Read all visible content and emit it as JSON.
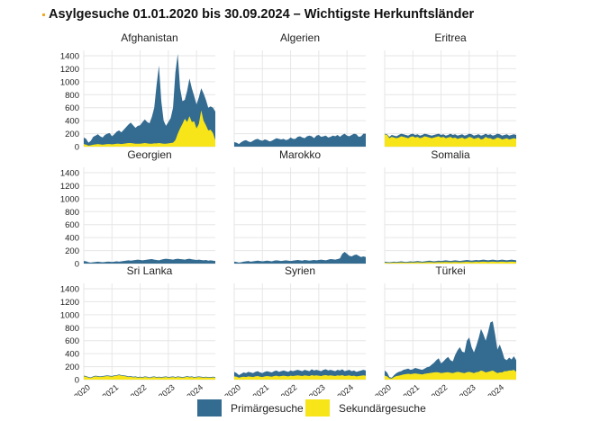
{
  "title": "Asylgesuche 01.01.2020 bis 30.09.2024 – Wichtigste Herkunftsländer",
  "chart_data": {
    "type": "area",
    "stacked": true,
    "x_unit": "month",
    "x_start": "2020-01",
    "x_end": "2024-09",
    "x_tick_labels": [
      "2020",
      "2021",
      "2022",
      "2023",
      "2024"
    ],
    "y_ticks": [
      0,
      200,
      400,
      600,
      800,
      1000,
      1200,
      1400
    ],
    "ylim": [
      0,
      1500
    ],
    "grid": true,
    "legend_position": "bottom",
    "series_meta": [
      {
        "name": "Primärgesuche",
        "color": "#336b91"
      },
      {
        "name": "Sekundärgesuche",
        "color": "#f7e51a"
      }
    ],
    "panels": [
      {
        "name": "Afghanistan",
        "total": [
          140,
          120,
          60,
          90,
          150,
          170,
          190,
          160,
          140,
          180,
          200,
          210,
          160,
          190,
          230,
          250,
          220,
          260,
          300,
          340,
          370,
          330,
          290,
          320,
          330,
          380,
          420,
          380,
          360,
          460,
          600,
          950,
          1250,
          700,
          400,
          320,
          380,
          440,
          600,
          1140,
          1430,
          900,
          700,
          720,
          860,
          1050,
          900,
          780,
          650,
          760,
          900,
          820,
          720,
          600,
          620,
          600,
          540
        ],
        "secondary": [
          40,
          30,
          15,
          20,
          30,
          35,
          40,
          35,
          30,
          35,
          40,
          40,
          35,
          40,
          45,
          45,
          40,
          45,
          50,
          55,
          55,
          50,
          45,
          45,
          45,
          50,
          55,
          50,
          45,
          45,
          50,
          50,
          55,
          50,
          45,
          45,
          50,
          55,
          60,
          100,
          200,
          280,
          350,
          430,
          380,
          470,
          380,
          390,
          280,
          350,
          560,
          400,
          330,
          250,
          260,
          210,
          100
        ]
      },
      {
        "name": "Algerien",
        "total": [
          70,
          60,
          40,
          70,
          90,
          100,
          80,
          70,
          90,
          110,
          120,
          100,
          90,
          110,
          100,
          80,
          90,
          110,
          130,
          120,
          110,
          120,
          100,
          110,
          140,
          120,
          120,
          150,
          160,
          140,
          130,
          160,
          170,
          160,
          130,
          170,
          180,
          150,
          160,
          170,
          140,
          150,
          170,
          160,
          180,
          150,
          180,
          200,
          170,
          160,
          180,
          200,
          190,
          150,
          160,
          200,
          200
        ],
        "secondary": [
          0,
          0,
          0,
          0,
          0,
          0,
          0,
          0,
          0,
          0,
          0,
          0,
          0,
          0,
          0,
          0,
          0,
          0,
          0,
          0,
          0,
          0,
          0,
          0,
          0,
          0,
          0,
          0,
          0,
          0,
          0,
          0,
          0,
          0,
          0,
          0,
          0,
          0,
          0,
          0,
          0,
          0,
          0,
          0,
          0,
          0,
          0,
          0,
          0,
          0,
          0,
          0,
          0,
          0,
          0,
          0,
          0
        ]
      },
      {
        "name": "Eritrea",
        "total": [
          200,
          190,
          150,
          180,
          170,
          160,
          180,
          200,
          190,
          180,
          170,
          190,
          200,
          180,
          190,
          170,
          180,
          200,
          190,
          180,
          170,
          180,
          190,
          200,
          180,
          190,
          170,
          180,
          200,
          180,
          190,
          170,
          180,
          190,
          170,
          180,
          200,
          190,
          170,
          180,
          190,
          170,
          180,
          200,
          180,
          190,
          170,
          180,
          200,
          190,
          170,
          180,
          190,
          170,
          180,
          190,
          180
        ],
        "secondary": [
          190,
          180,
          130,
          150,
          140,
          130,
          140,
          160,
          150,
          140,
          130,
          150,
          160,
          140,
          150,
          130,
          140,
          160,
          150,
          140,
          130,
          140,
          150,
          160,
          140,
          150,
          130,
          140,
          150,
          130,
          140,
          120,
          130,
          140,
          120,
          130,
          150,
          140,
          120,
          130,
          140,
          110,
          120,
          150,
          130,
          130,
          110,
          120,
          140,
          130,
          110,
          120,
          130,
          110,
          120,
          130,
          120
        ]
      },
      {
        "name": "Georgien",
        "total": [
          40,
          35,
          20,
          15,
          20,
          25,
          30,
          25,
          20,
          25,
          30,
          30,
          25,
          30,
          35,
          30,
          35,
          40,
          45,
          50,
          45,
          50,
          55,
          60,
          55,
          50,
          55,
          60,
          65,
          70,
          60,
          55,
          50,
          60,
          70,
          75,
          70,
          65,
          60,
          70,
          75,
          70,
          65,
          60,
          70,
          75,
          65,
          60,
          55,
          60,
          55,
          50,
          55,
          45,
          50,
          45,
          40
        ],
        "secondary": [
          0,
          0,
          0,
          0,
          0,
          0,
          0,
          0,
          0,
          0,
          0,
          0,
          0,
          0,
          0,
          0,
          0,
          0,
          0,
          0,
          0,
          0,
          0,
          0,
          0,
          0,
          0,
          0,
          0,
          0,
          0,
          0,
          0,
          0,
          0,
          0,
          0,
          0,
          0,
          0,
          0,
          0,
          0,
          0,
          0,
          0,
          0,
          0,
          0,
          0,
          0,
          0,
          0,
          0,
          0,
          0,
          0
        ]
      },
      {
        "name": "Marokko",
        "total": [
          30,
          25,
          15,
          20,
          30,
          35,
          40,
          30,
          35,
          40,
          45,
          40,
          35,
          40,
          45,
          40,
          35,
          45,
          50,
          45,
          40,
          45,
          50,
          45,
          40,
          45,
          50,
          55,
          50,
          45,
          55,
          50,
          45,
          50,
          55,
          50,
          55,
          60,
          55,
          50,
          60,
          70,
          65,
          60,
          70,
          80,
          150,
          180,
          150,
          120,
          110,
          130,
          140,
          120,
          100,
          110,
          100
        ],
        "secondary": [
          0,
          0,
          0,
          0,
          0,
          0,
          0,
          0,
          0,
          0,
          0,
          0,
          0,
          0,
          0,
          0,
          0,
          0,
          0,
          0,
          0,
          0,
          0,
          0,
          0,
          0,
          0,
          0,
          0,
          0,
          0,
          0,
          0,
          0,
          0,
          0,
          0,
          0,
          0,
          0,
          0,
          0,
          0,
          0,
          0,
          0,
          0,
          0,
          0,
          0,
          0,
          0,
          0,
          0,
          0,
          0,
          0
        ]
      },
      {
        "name": "Somalia",
        "total": [
          30,
          25,
          20,
          25,
          30,
          25,
          30,
          35,
          30,
          25,
          30,
          35,
          30,
          35,
          40,
          35,
          30,
          35,
          40,
          45,
          40,
          35,
          40,
          45,
          40,
          45,
          50,
          45,
          40,
          45,
          50,
          45,
          40,
          45,
          50,
          55,
          50,
          45,
          50,
          55,
          50,
          55,
          60,
          55,
          50,
          55,
          60,
          55,
          50,
          55,
          60,
          55,
          50,
          55,
          60,
          55,
          50
        ],
        "secondary": [
          15,
          12,
          10,
          12,
          15,
          12,
          15,
          18,
          15,
          12,
          15,
          18,
          15,
          18,
          20,
          18,
          15,
          18,
          20,
          22,
          20,
          18,
          20,
          22,
          20,
          22,
          25,
          22,
          20,
          22,
          25,
          22,
          20,
          22,
          25,
          27,
          25,
          22,
          25,
          27,
          25,
          27,
          30,
          27,
          25,
          27,
          30,
          27,
          25,
          27,
          30,
          27,
          25,
          27,
          30,
          27,
          25
        ]
      },
      {
        "name": "Sri Lanka",
        "total": [
          60,
          55,
          40,
          35,
          50,
          60,
          55,
          50,
          55,
          60,
          65,
          60,
          55,
          65,
          70,
          80,
          70,
          65,
          60,
          50,
          55,
          45,
          50,
          40,
          45,
          40,
          50,
          45,
          35,
          45,
          50,
          40,
          45,
          40,
          45,
          50,
          40,
          45,
          50,
          40,
          50,
          45,
          40,
          45,
          55,
          45,
          50,
          40,
          45,
          50,
          45,
          40,
          45,
          40,
          40,
          45,
          40
        ],
        "secondary": [
          50,
          45,
          30,
          25,
          40,
          50,
          45,
          40,
          45,
          50,
          55,
          50,
          45,
          55,
          60,
          70,
          60,
          55,
          50,
          40,
          45,
          35,
          40,
          30,
          35,
          30,
          40,
          35,
          25,
          35,
          40,
          30,
          35,
          30,
          35,
          40,
          30,
          35,
          40,
          30,
          40,
          35,
          30,
          35,
          45,
          35,
          40,
          30,
          35,
          40,
          35,
          30,
          35,
          30,
          30,
          35,
          30
        ]
      },
      {
        "name": "Syrien",
        "total": [
          120,
          100,
          70,
          90,
          110,
          100,
          120,
          110,
          100,
          120,
          130,
          110,
          100,
          120,
          130,
          120,
          110,
          130,
          140,
          120,
          130,
          140,
          130,
          120,
          140,
          130,
          140,
          150,
          140,
          130,
          150,
          140,
          130,
          160,
          140,
          150,
          140,
          130,
          150,
          160,
          140,
          150,
          140,
          130,
          150,
          140,
          160,
          130,
          140,
          150,
          130,
          140,
          120,
          130,
          140,
          150,
          140
        ],
        "secondary": [
          50,
          45,
          30,
          40,
          45,
          40,
          50,
          45,
          40,
          50,
          55,
          45,
          40,
          50,
          55,
          50,
          45,
          55,
          60,
          50,
          55,
          60,
          55,
          50,
          60,
          55,
          60,
          65,
          60,
          55,
          65,
          60,
          55,
          70,
          60,
          65,
          60,
          55,
          65,
          70,
          60,
          65,
          60,
          55,
          65,
          60,
          70,
          55,
          60,
          65,
          55,
          60,
          50,
          55,
          60,
          65,
          60
        ]
      },
      {
        "name": "Türkei",
        "total": [
          140,
          110,
          40,
          30,
          70,
          100,
          120,
          130,
          150,
          160,
          170,
          150,
          160,
          180,
          170,
          160,
          150,
          170,
          190,
          200,
          230,
          260,
          300,
          330,
          250,
          280,
          320,
          350,
          300,
          280,
          380,
          450,
          500,
          430,
          420,
          600,
          650,
          500,
          420,
          520,
          640,
          780,
          700,
          600,
          730,
          880,
          900,
          700,
          460,
          540,
          440,
          320,
          300,
          340,
          310,
          360,
          300
        ],
        "secondary": [
          60,
          50,
          20,
          15,
          40,
          55,
          60,
          70,
          80,
          85,
          90,
          85,
          90,
          95,
          90,
          85,
          80,
          90,
          95,
          100,
          105,
          110,
          115,
          110,
          100,
          105,
          110,
          115,
          105,
          100,
          110,
          120,
          115,
          105,
          100,
          115,
          120,
          110,
          100,
          115,
          120,
          140,
          130,
          110,
          120,
          130,
          140,
          120,
          100,
          110,
          110,
          130,
          130,
          140,
          140,
          150,
          120
        ]
      }
    ]
  },
  "legend": {
    "items": [
      {
        "label": "Primärgesuche",
        "color": "#336b91"
      },
      {
        "label": "Sekundärgesuche",
        "color": "#f7e51a"
      }
    ]
  }
}
